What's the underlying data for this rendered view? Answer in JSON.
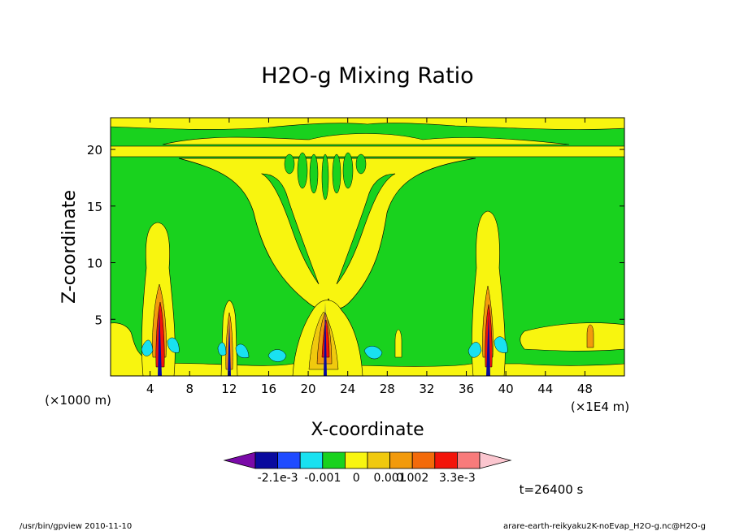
{
  "chart_data": {
    "type": "heatmap",
    "title": "H2O-g Mixing Ratio",
    "xlabel": "X-coordinate",
    "ylabel": "Z-coordinate",
    "x_unit_left": "(×1000 m)",
    "x_unit_right": "(×1E4 m)",
    "xlim": [
      0,
      52
    ],
    "ylim": [
      0,
      22.8
    ],
    "x_ticks": [
      4,
      8,
      12,
      16,
      20,
      24,
      28,
      32,
      36,
      40,
      44,
      48
    ],
    "y_ticks": [
      5,
      10,
      15,
      20
    ],
    "colorbar": {
      "colors": [
        "#7a0aa8",
        "#0a0a9e",
        "#1f4bff",
        "#19e1f0",
        "#19d21e",
        "#f8f50f",
        "#f0c90e",
        "#f29a0c",
        "#f36a0a",
        "#f3140a",
        "#f87b7b",
        "#fbc6cf"
      ],
      "labels": [
        "-2.1e-3",
        "-0.001",
        "0",
        "0.001",
        "0.002",
        "3.3e-3"
      ]
    },
    "time_label": "t=26400 s"
  },
  "footer": {
    "left": "/usr/bin/gpview   2010-11-10",
    "right": "arare-earth-reikyaku2K-noEvap_H2O-g.nc@H2O-g"
  }
}
